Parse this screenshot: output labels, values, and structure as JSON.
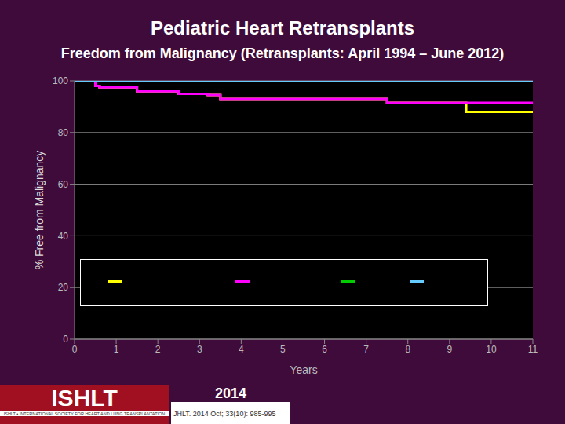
{
  "chart_data": {
    "type": "line",
    "title": "Pediatric Heart Retransplants",
    "subtitle": "Freedom from Malignancy (Retransplants: April 1994 – June 2012)",
    "x_label": "Years",
    "y_label": "% Free from Malignancy",
    "x": [
      0,
      0.5,
      0.6,
      1.5,
      2.5,
      3.2,
      3.5,
      7.5,
      9.4,
      11
    ],
    "series": [
      {
        "color": "#ffff00",
        "values": [
          100,
          98,
          97.5,
          96,
          95,
          94.5,
          93,
          91.5,
          88,
          88
        ]
      },
      {
        "color": "#ff00ff",
        "values": [
          100,
          98,
          97.5,
          96,
          95,
          94.5,
          93,
          91.5,
          91.5,
          91.5
        ]
      },
      {
        "color": "#00cc00",
        "values": [
          null,
          null,
          null,
          null,
          null,
          null,
          null,
          null,
          null,
          null
        ]
      },
      {
        "color": "#66ccff",
        "values": [
          100,
          100,
          100,
          100,
          100,
          100,
          100,
          100,
          100,
          100
        ]
      }
    ],
    "xlim": [
      0,
      11
    ],
    "xticks": [
      0,
      1,
      2,
      3,
      4,
      5,
      6,
      7,
      8,
      9,
      10,
      11
    ],
    "ylim": [
      0,
      100
    ],
    "yticks": [
      0,
      20,
      40,
      60,
      80,
      100
    ],
    "grid": true,
    "line_style": "step"
  },
  "footer": {
    "logo": "ISHLT",
    "society": "ISHLT • INTERNATIONAL SOCIETY FOR HEART AND LUNG TRANSPLANTATION",
    "year": "2014",
    "citation": "JHLT. 2014 Oct; 33(10): 985-995"
  }
}
